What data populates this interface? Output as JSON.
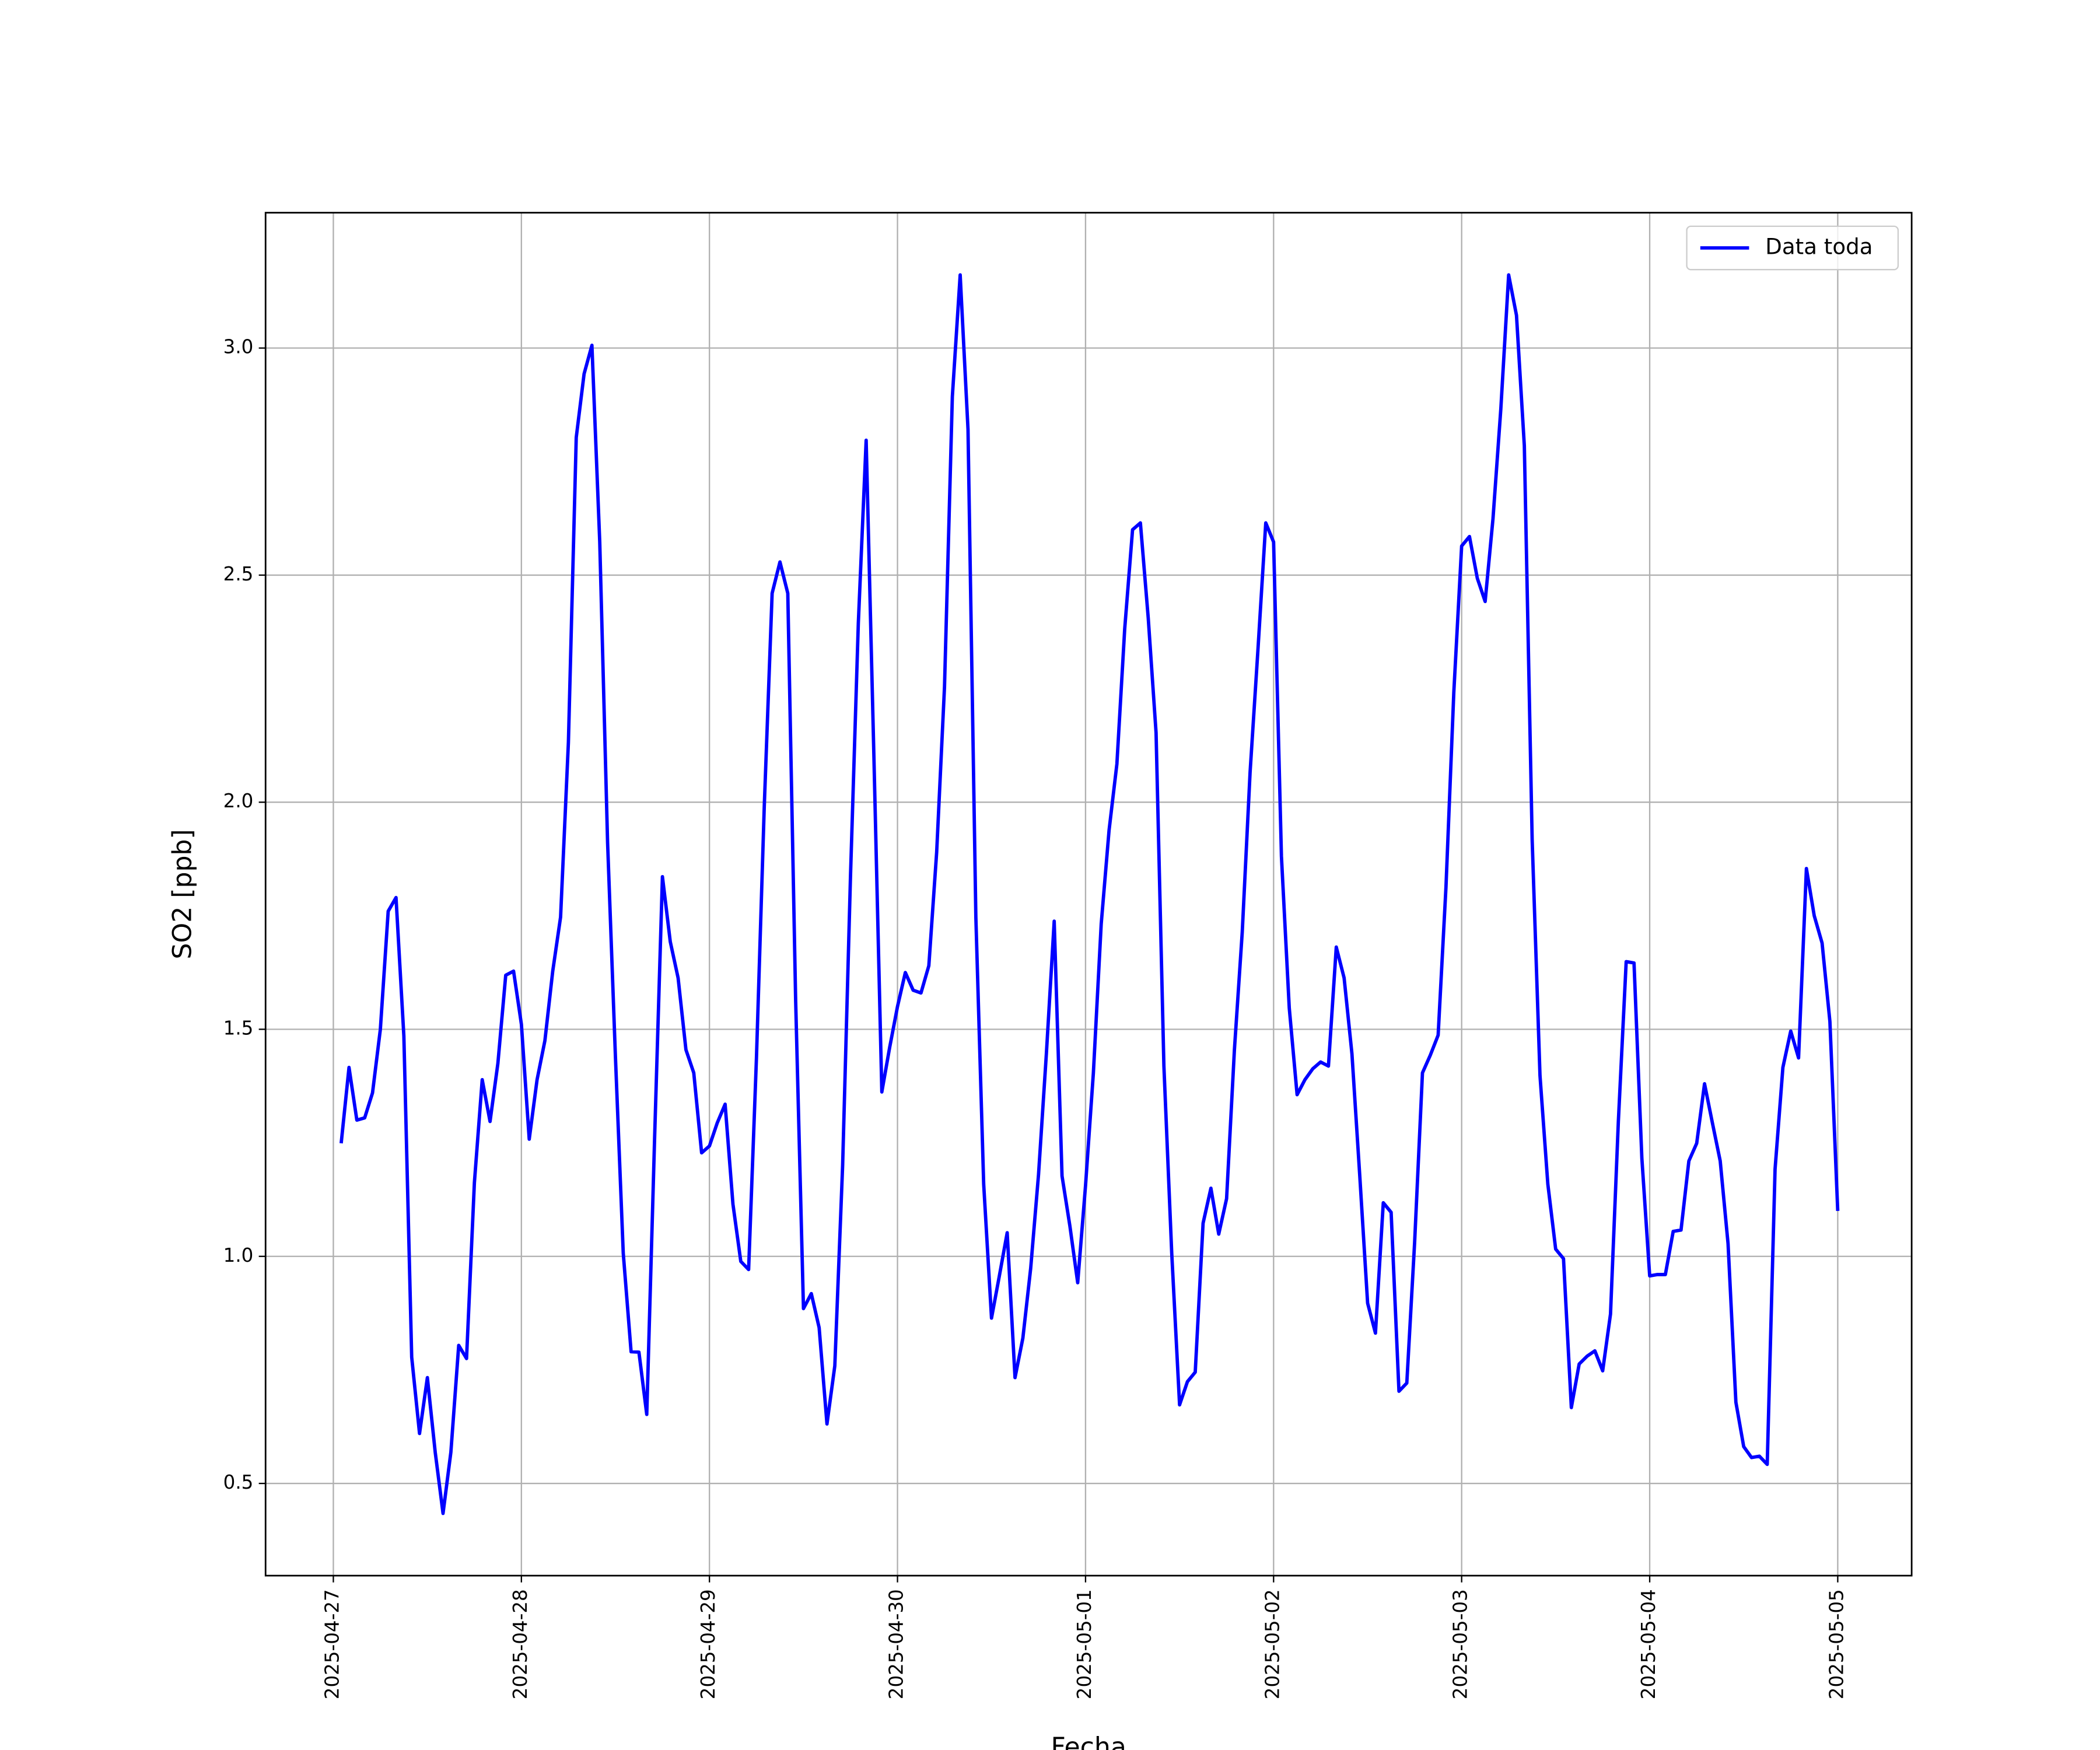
{
  "chart_data": {
    "type": "line",
    "xlabel": "Fecha",
    "ylabel": "SO2 [ppb]",
    "xlim": [
      "2025-04-26T15:21",
      "2025-05-05T09:26"
    ],
    "xticks": [
      "2025-04-27",
      "2025-04-28",
      "2025-04-29",
      "2025-04-30",
      "2025-05-01",
      "2025-05-02",
      "2025-05-03",
      "2025-05-04",
      "2025-05-05"
    ],
    "ylim": [
      0.297,
      3.298
    ],
    "yticks": [
      {
        "value": 0.5,
        "label": "0.5"
      },
      {
        "value": 1.0,
        "label": "1.0"
      },
      {
        "value": 1.5,
        "label": "1.5"
      },
      {
        "value": 2.0,
        "label": "2.0"
      },
      {
        "value": 2.5,
        "label": "2.5"
      },
      {
        "value": 3.0,
        "label": "3.0"
      }
    ],
    "grid": true,
    "legend": "upper right",
    "x": [
      "2025-04-27T01:00",
      "2025-04-27T02:00",
      "2025-04-27T03:00",
      "2025-04-27T04:00",
      "2025-04-27T05:00",
      "2025-04-27T06:00",
      "2025-04-27T07:00",
      "2025-04-27T08:00",
      "2025-04-27T09:00",
      "2025-04-27T10:00",
      "2025-04-27T11:00",
      "2025-04-27T12:00",
      "2025-04-27T13:00",
      "2025-04-27T14:00",
      "2025-04-27T15:00",
      "2025-04-27T16:00",
      "2025-04-27T17:00",
      "2025-04-27T18:00",
      "2025-04-27T19:00",
      "2025-04-27T20:00",
      "2025-04-27T21:00",
      "2025-04-27T22:00",
      "2025-04-27T23:00",
      "2025-04-28T00:00",
      "2025-04-28T01:00",
      "2025-04-28T02:00",
      "2025-04-28T03:00",
      "2025-04-28T04:00",
      "2025-04-28T05:00",
      "2025-04-28T06:00",
      "2025-04-28T07:00",
      "2025-04-28T08:00",
      "2025-04-28T09:00",
      "2025-04-28T10:00",
      "2025-04-28T11:00",
      "2025-04-28T12:00",
      "2025-04-28T13:00",
      "2025-04-28T14:00",
      "2025-04-28T15:00",
      "2025-04-28T16:00",
      "2025-04-28T17:00",
      "2025-04-28T18:00",
      "2025-04-28T19:00",
      "2025-04-28T20:00",
      "2025-04-28T21:00",
      "2025-04-28T22:00",
      "2025-04-28T23:00",
      "2025-04-29T00:00",
      "2025-04-29T01:00",
      "2025-04-29T02:00",
      "2025-04-29T03:00",
      "2025-04-29T04:00",
      "2025-04-29T05:00",
      "2025-04-29T06:00",
      "2025-04-29T07:00",
      "2025-04-29T08:00",
      "2025-04-29T09:00",
      "2025-04-29T10:00",
      "2025-04-29T11:00",
      "2025-04-29T12:00",
      "2025-04-29T13:00",
      "2025-04-29T14:00",
      "2025-04-29T15:00",
      "2025-04-29T16:00",
      "2025-04-29T17:00",
      "2025-04-29T18:00",
      "2025-04-29T19:00",
      "2025-04-29T20:00",
      "2025-04-29T21:00",
      "2025-04-29T22:00",
      "2025-04-29T23:00",
      "2025-04-30T00:00",
      "2025-04-30T01:00",
      "2025-04-30T02:00",
      "2025-04-30T03:00",
      "2025-04-30T04:00",
      "2025-04-30T05:00",
      "2025-04-30T06:00",
      "2025-04-30T07:00",
      "2025-04-30T08:00",
      "2025-04-30T09:00",
      "2025-04-30T10:00",
      "2025-04-30T11:00",
      "2025-04-30T12:00",
      "2025-04-30T13:00",
      "2025-04-30T14:00",
      "2025-04-30T15:00",
      "2025-04-30T16:00",
      "2025-04-30T17:00",
      "2025-04-30T18:00",
      "2025-04-30T19:00",
      "2025-04-30T20:00",
      "2025-04-30T21:00",
      "2025-04-30T22:00",
      "2025-04-30T23:00",
      "2025-05-01T00:00",
      "2025-05-01T01:00",
      "2025-05-01T02:00",
      "2025-05-01T03:00",
      "2025-05-01T04:00",
      "2025-05-01T05:00",
      "2025-05-01T06:00",
      "2025-05-01T07:00",
      "2025-05-01T08:00",
      "2025-05-01T09:00",
      "2025-05-01T10:00",
      "2025-05-01T11:00",
      "2025-05-01T12:00",
      "2025-05-01T13:00",
      "2025-05-01T14:00",
      "2025-05-01T15:00",
      "2025-05-01T16:00",
      "2025-05-01T17:00",
      "2025-05-01T18:00",
      "2025-05-01T19:00",
      "2025-05-01T20:00",
      "2025-05-01T21:00",
      "2025-05-01T22:00",
      "2025-05-01T23:00",
      "2025-05-02T00:00",
      "2025-05-02T01:00",
      "2025-05-02T02:00",
      "2025-05-02T03:00",
      "2025-05-02T04:00",
      "2025-05-02T05:00",
      "2025-05-02T06:00",
      "2025-05-02T07:00",
      "2025-05-02T08:00",
      "2025-05-02T09:00",
      "2025-05-02T10:00",
      "2025-05-02T11:00",
      "2025-05-02T12:00",
      "2025-05-02T13:00",
      "2025-05-02T14:00",
      "2025-05-02T15:00",
      "2025-05-02T16:00",
      "2025-05-02T17:00",
      "2025-05-02T18:00",
      "2025-05-02T19:00",
      "2025-05-02T20:00",
      "2025-05-02T21:00",
      "2025-05-02T22:00",
      "2025-05-02T23:00",
      "2025-05-03T00:00",
      "2025-05-03T01:00",
      "2025-05-03T02:00",
      "2025-05-03T03:00",
      "2025-05-03T04:00",
      "2025-05-03T05:00",
      "2025-05-03T06:00",
      "2025-05-03T07:00",
      "2025-05-03T08:00",
      "2025-05-03T09:00",
      "2025-05-03T10:00",
      "2025-05-03T11:00",
      "2025-05-03T12:00",
      "2025-05-03T13:00",
      "2025-05-03T14:00",
      "2025-05-03T15:00",
      "2025-05-03T16:00",
      "2025-05-03T17:00",
      "2025-05-03T18:00",
      "2025-05-03T19:00",
      "2025-05-03T20:00",
      "2025-05-03T21:00",
      "2025-05-03T22:00",
      "2025-05-03T23:00",
      "2025-05-04T00:00",
      "2025-05-04T01:00",
      "2025-05-04T02:00",
      "2025-05-04T03:00",
      "2025-05-04T04:00",
      "2025-05-04T05:00",
      "2025-05-04T06:00",
      "2025-05-04T07:00",
      "2025-05-04T08:00",
      "2025-05-04T09:00",
      "2025-05-04T10:00",
      "2025-05-04T11:00",
      "2025-05-04T12:00",
      "2025-05-04T13:00",
      "2025-05-04T14:00",
      "2025-05-04T15:00",
      "2025-05-04T16:00",
      "2025-05-04T17:00",
      "2025-05-04T18:00",
      "2025-05-04T19:00",
      "2025-05-04T20:00",
      "2025-05-04T21:00",
      "2025-05-04T22:00",
      "2025-05-04T23:00",
      "2025-05-05T00:00"
    ],
    "series": [
      {
        "name": "Data toda",
        "color": "#0000ff",
        "values": [
          1.249,
          1.416,
          1.3,
          1.305,
          1.36,
          1.5,
          1.76,
          1.79,
          1.485,
          0.778,
          0.61,
          0.733,
          0.569,
          0.434,
          0.569,
          0.804,
          0.775,
          1.162,
          1.389,
          1.297,
          1.425,
          1.619,
          1.628,
          1.511,
          1.258,
          1.389,
          1.475,
          1.628,
          1.747,
          2.132,
          2.803,
          2.943,
          3.006,
          2.573,
          1.911,
          1.44,
          1.007,
          0.79,
          0.789,
          0.652,
          1.26,
          1.836,
          1.693,
          1.613,
          1.455,
          1.404,
          1.228,
          1.243,
          1.294,
          1.335,
          1.115,
          0.989,
          0.971,
          1.437,
          1.992,
          2.46,
          2.529,
          2.46,
          1.565,
          0.885,
          0.918,
          0.843,
          0.631,
          0.759,
          1.201,
          1.836,
          2.394,
          2.797,
          2.093,
          1.362,
          1.46,
          1.55,
          1.625,
          1.586,
          1.58,
          1.64,
          1.89,
          2.254,
          2.893,
          3.161,
          2.821,
          1.747,
          1.159,
          0.864,
          0.957,
          1.052,
          0.733,
          0.82,
          0.974,
          1.18,
          1.446,
          1.738,
          1.177,
          1.067,
          0.942,
          1.156,
          1.404,
          1.732,
          1.938,
          2.084,
          2.382,
          2.6,
          2.615,
          2.406,
          2.153,
          1.419,
          1.007,
          0.673,
          0.724,
          0.745,
          1.073,
          1.15,
          1.049,
          1.127,
          1.455,
          1.714,
          2.066,
          2.335,
          2.615,
          2.573,
          1.881,
          1.547,
          1.356,
          1.389,
          1.413,
          1.428,
          1.419,
          1.681,
          1.613,
          1.446,
          1.177,
          0.897,
          0.831,
          1.118,
          1.097,
          0.703,
          0.721,
          1.031,
          1.404,
          1.443,
          1.487,
          1.813,
          2.242,
          2.564,
          2.585,
          2.493,
          2.442,
          2.624,
          2.866,
          3.161,
          3.072,
          2.785,
          1.917,
          1.398,
          1.159,
          1.016,
          0.995,
          0.667,
          0.763,
          0.78,
          0.792,
          0.748,
          0.873,
          1.297,
          1.649,
          1.646,
          1.216,
          0.957,
          0.96,
          0.96,
          1.055,
          1.058,
          1.21,
          1.249,
          1.38,
          1.294,
          1.21,
          1.028,
          0.679,
          0.581,
          0.557,
          0.56,
          0.542,
          1.192,
          1.416,
          1.496,
          1.437,
          1.854,
          1.75,
          1.69,
          1.517,
          1.1
        ]
      }
    ]
  }
}
